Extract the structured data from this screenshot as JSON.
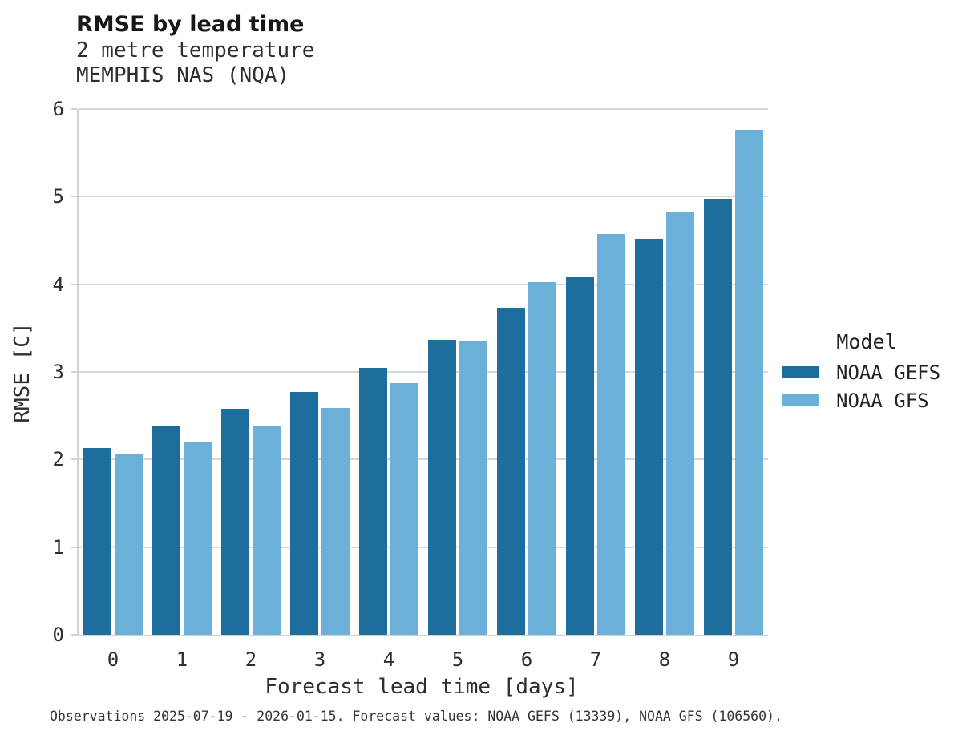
{
  "header": {
    "title": "RMSE by lead time",
    "subtitle_line1": "2 metre temperature",
    "subtitle_line2": "MEMPHIS NAS (NQA)"
  },
  "legend": {
    "title": "Model",
    "items": [
      {
        "label": "NOAA GEFS",
        "color": "#1d6e9c"
      },
      {
        "label": "NOAA GFS",
        "color": "#6bb0d8"
      }
    ]
  },
  "caption": "Observations 2025-07-19 - 2026-01-15. Forecast values: NOAA GEFS (13339), NOAA GFS (106560).",
  "chart_data": {
    "type": "bar",
    "title": "RMSE by lead time",
    "subtitle": [
      "2 metre temperature",
      "MEMPHIS NAS (NQA)"
    ],
    "xlabel": "Forecast lead time [days]",
    "ylabel": "RMSE [C]",
    "categories": [
      "0",
      "1",
      "2",
      "3",
      "4",
      "5",
      "6",
      "7",
      "8",
      "9"
    ],
    "series": [
      {
        "name": "NOAA GEFS",
        "color": "#1d6e9c",
        "values": [
          2.13,
          2.39,
          2.58,
          2.77,
          3.05,
          3.37,
          3.73,
          4.09,
          4.52,
          4.98
        ]
      },
      {
        "name": "NOAA GFS",
        "color": "#6bb0d8",
        "values": [
          2.06,
          2.2,
          2.38,
          2.59,
          2.87,
          3.36,
          4.02,
          4.57,
          4.83,
          5.76
        ]
      }
    ],
    "ylim": [
      0,
      6
    ],
    "yticks": [
      0,
      1,
      2,
      3,
      4,
      5,
      6
    ],
    "grid": "horizontal",
    "legend_position": "right",
    "legend_title": "Model"
  }
}
